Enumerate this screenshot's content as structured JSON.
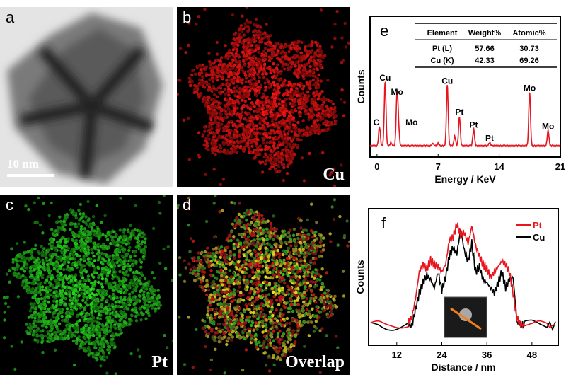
{
  "panels": {
    "a": {
      "label": "a",
      "scale_bar": "10 nm"
    },
    "b": {
      "label": "b",
      "element": "Cu",
      "color": "#e01010"
    },
    "c": {
      "label": "c",
      "element": "Pt",
      "color": "#30c030"
    },
    "d": {
      "label": "d",
      "element": "Overlap"
    }
  },
  "chart_data": [
    {
      "panel": "e",
      "type": "line",
      "xlabel": "Energy / KeV",
      "ylabel": "Counts",
      "xlim": [
        -0.8,
        21
      ],
      "xticks": [
        0,
        7,
        14,
        21
      ],
      "color": "#e8141e",
      "peaks": [
        {
          "x": 0.28,
          "y": 0.3,
          "label": "C"
        },
        {
          "x": 0.93,
          "y": 1.0,
          "label": "Cu"
        },
        {
          "x": 2.29,
          "y": 0.78,
          "label": "Mo"
        },
        {
          "x": 2.45,
          "y": 0.3,
          "label": "Mo"
        },
        {
          "x": 1.6,
          "y": 0.05,
          "label": ""
        },
        {
          "x": 6.4,
          "y": 0.04,
          "label": ""
        },
        {
          "x": 7.0,
          "y": 0.04,
          "label": ""
        },
        {
          "x": 8.05,
          "y": 0.95,
          "label": "Cu"
        },
        {
          "x": 8.9,
          "y": 0.15,
          "label": ""
        },
        {
          "x": 9.44,
          "y": 0.46,
          "label": "Pt"
        },
        {
          "x": 11.07,
          "y": 0.26,
          "label": "Pt"
        },
        {
          "x": 12.9,
          "y": 0.05,
          "label": "Pt"
        },
        {
          "x": 17.48,
          "y": 0.84,
          "label": "Mo"
        },
        {
          "x": 19.6,
          "y": 0.24,
          "label": "Mo"
        }
      ],
      "table": {
        "headers": [
          "Element",
          "Weight%",
          "Atomic%"
        ],
        "rows": [
          [
            "Pt  (L)",
            "57.66",
            "30.73"
          ],
          [
            "Cu (K)",
            "42.33",
            "69.26"
          ]
        ]
      }
    },
    {
      "panel": "f",
      "type": "line",
      "xlabel": "Distance / nm",
      "ylabel": "Counts",
      "xlim": [
        4.5,
        55
      ],
      "xticks": [
        12,
        24,
        36,
        48
      ],
      "legend": "top-right",
      "series": [
        {
          "name": "Pt",
          "color": "#e8141e",
          "x": [
            5,
            7,
            9,
            11,
            13,
            15,
            16,
            17,
            18,
            19,
            20,
            21,
            22,
            23,
            24,
            25,
            26,
            27,
            28,
            29,
            30,
            31,
            32,
            33,
            34,
            35,
            36,
            37,
            38,
            39,
            40,
            41,
            42,
            43,
            44,
            45,
            46,
            48,
            50,
            52,
            55
          ],
          "y": [
            0.04,
            0.05,
            0.04,
            0.05,
            0.06,
            0.07,
            0.12,
            0.3,
            0.55,
            0.62,
            0.58,
            0.66,
            0.62,
            0.6,
            0.55,
            0.62,
            0.85,
            0.88,
            1.0,
            0.9,
            0.92,
            0.82,
            0.98,
            0.8,
            0.7,
            0.62,
            0.58,
            0.5,
            0.55,
            0.6,
            0.65,
            0.62,
            0.55,
            0.35,
            0.12,
            0.05,
            0.05,
            0.04,
            0.05,
            0.04,
            0.05
          ]
        },
        {
          "name": "Cu",
          "color": "#000000",
          "x": [
            5,
            7,
            9,
            11,
            13,
            15,
            16,
            17,
            18,
            19,
            20,
            21,
            22,
            23,
            24,
            25,
            26,
            27,
            28,
            29,
            30,
            31,
            32,
            33,
            34,
            35,
            36,
            37,
            38,
            39,
            40,
            41,
            42,
            43,
            44,
            45,
            46,
            48,
            50,
            52,
            55
          ],
          "y": [
            0.04,
            0.05,
            0.04,
            0.04,
            0.05,
            0.06,
            0.04,
            0.2,
            0.35,
            0.45,
            0.52,
            0.48,
            0.4,
            0.55,
            0.38,
            0.5,
            0.7,
            0.78,
            0.72,
            0.95,
            0.75,
            0.65,
            0.82,
            0.55,
            0.6,
            0.48,
            0.45,
            0.4,
            0.35,
            0.45,
            0.55,
            0.4,
            0.48,
            0.5,
            0.08,
            0.06,
            0.05,
            0.06,
            0.05,
            0.05,
            0.04
          ]
        }
      ]
    }
  ]
}
